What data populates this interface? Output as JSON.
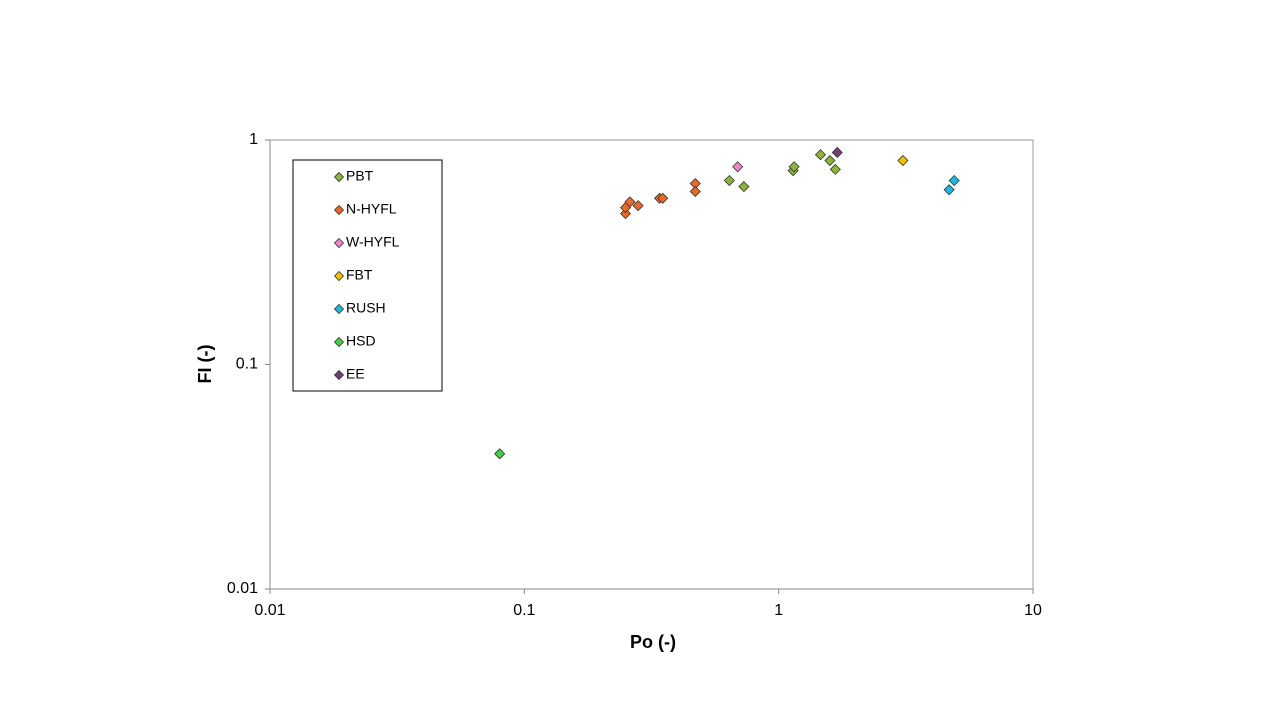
{
  "chart_data": {
    "type": "scatter",
    "x_label": "Po (-)",
    "y_label": "FI (-)",
    "xscale": "log",
    "yscale": "log",
    "xlim": [
      0.01,
      10
    ],
    "ylim": [
      0.01,
      1
    ],
    "xticks": [
      0.01,
      0.1,
      1,
      10
    ],
    "yticks": [
      0.01,
      0.1,
      1
    ],
    "grid": false,
    "legend": "upper left",
    "series": [
      {
        "name": "PBT",
        "color": "#8cb43c",
        "x": [
          0.64,
          0.73,
          1.14,
          1.15,
          1.46,
          1.59,
          1.67
        ],
        "values": [
          0.66,
          0.62,
          0.73,
          0.76,
          0.86,
          0.81,
          0.74
        ]
      },
      {
        "name": "N-HYFL",
        "color": "#e86a28",
        "x": [
          0.25,
          0.25,
          0.26,
          0.28,
          0.34,
          0.35,
          0.47,
          0.47
        ],
        "values": [
          0.47,
          0.5,
          0.53,
          0.51,
          0.55,
          0.55,
          0.64,
          0.59
        ]
      },
      {
        "name": "W-HYFL",
        "color": "#e886c8",
        "x": [
          0.69
        ],
        "values": [
          0.76
        ]
      },
      {
        "name": "FBT",
        "color": "#f0c000",
        "x": [
          3.08
        ],
        "values": [
          0.81
        ]
      },
      {
        "name": "RUSH",
        "color": "#20b8e0",
        "x": [
          4.68,
          4.9
        ],
        "values": [
          0.6,
          0.66
        ]
      },
      {
        "name": "HSD",
        "color": "#40d040",
        "x": [
          0.08
        ],
        "values": [
          0.04
        ]
      },
      {
        "name": "EE",
        "color": "#7a3a78",
        "x": [
          1.7
        ],
        "values": [
          0.88
        ]
      }
    ]
  }
}
